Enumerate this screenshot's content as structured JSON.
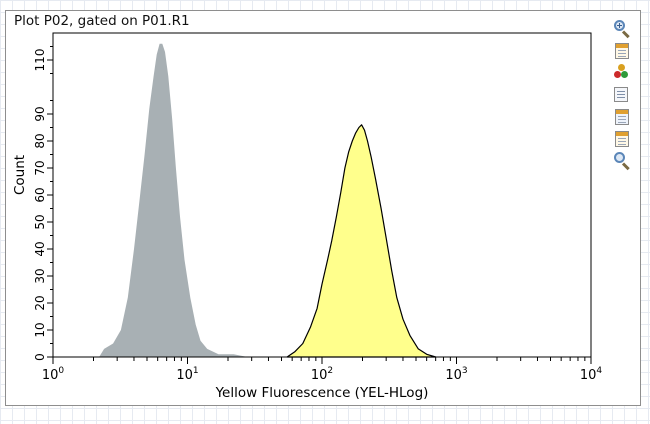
{
  "title": "Plot P02, gated on P01.R1",
  "toolbar": {
    "icons": [
      "zoom-in-icon",
      "layout-icon",
      "color-dots-icon",
      "stats-icon",
      "print-icon",
      "export-icon",
      "zoom-out-icon"
    ]
  },
  "colors": {
    "gray_fill": "#a8b0b4",
    "yellow_fill": "#ffff8c",
    "yellow_outline": "#000000",
    "axis": "#000000"
  },
  "chart_data": {
    "type": "area",
    "title": "Plot P02, gated on P01.R1",
    "xlabel": "Yellow Fluorescence (YEL-HLog)",
    "ylabel": "Count",
    "xscale": "log",
    "xlim": [
      1,
      10000
    ],
    "ylim": [
      0,
      120
    ],
    "x_ticks": [
      {
        "base": "10",
        "exp": "0",
        "value": 1
      },
      {
        "base": "10",
        "exp": "1",
        "value": 10
      },
      {
        "base": "10",
        "exp": "2",
        "value": 100
      },
      {
        "base": "10",
        "exp": "3",
        "value": 1000
      },
      {
        "base": "10",
        "exp": "4",
        "value": 10000
      }
    ],
    "y_ticks": [
      "0",
      "10",
      "20",
      "30",
      "40",
      "50",
      "60",
      "70",
      "80",
      "90",
      "110"
    ],
    "grid": false,
    "legend": "none",
    "series": [
      {
        "color": "#a8b0b4",
        "outline": false,
        "points": [
          [
            2.2,
            0
          ],
          [
            2.4,
            3
          ],
          [
            2.8,
            5
          ],
          [
            3.2,
            10
          ],
          [
            3.6,
            22
          ],
          [
            4.0,
            40
          ],
          [
            4.4,
            58
          ],
          [
            4.8,
            75
          ],
          [
            5.2,
            92
          ],
          [
            5.6,
            104
          ],
          [
            5.9,
            112
          ],
          [
            6.2,
            116
          ],
          [
            6.5,
            116
          ],
          [
            6.8,
            113
          ],
          [
            7.2,
            104
          ],
          [
            7.7,
            88
          ],
          [
            8.2,
            70
          ],
          [
            8.8,
            52
          ],
          [
            9.5,
            36
          ],
          [
            10.5,
            22
          ],
          [
            11.5,
            12
          ],
          [
            12.5,
            6
          ],
          [
            14,
            3
          ],
          [
            17,
            1
          ],
          [
            22,
            1
          ],
          [
            28,
            0
          ]
        ]
      },
      {
        "color": "#ffff8c",
        "outline": true,
        "points": [
          [
            55,
            0
          ],
          [
            63,
            2
          ],
          [
            72,
            5
          ],
          [
            82,
            11
          ],
          [
            92,
            18
          ],
          [
            100,
            27
          ],
          [
            110,
            36
          ],
          [
            118,
            43
          ],
          [
            128,
            52
          ],
          [
            138,
            61
          ],
          [
            148,
            70
          ],
          [
            158,
            76
          ],
          [
            168,
            80
          ],
          [
            178,
            83
          ],
          [
            188,
            85
          ],
          [
            197,
            86
          ],
          [
            207,
            84
          ],
          [
            218,
            80
          ],
          [
            232,
            74
          ],
          [
            250,
            66
          ],
          [
            275,
            55
          ],
          [
            300,
            44
          ],
          [
            330,
            32
          ],
          [
            360,
            22
          ],
          [
            400,
            14
          ],
          [
            450,
            8
          ],
          [
            520,
            3
          ],
          [
            600,
            1
          ],
          [
            700,
            0
          ]
        ]
      }
    ]
  }
}
